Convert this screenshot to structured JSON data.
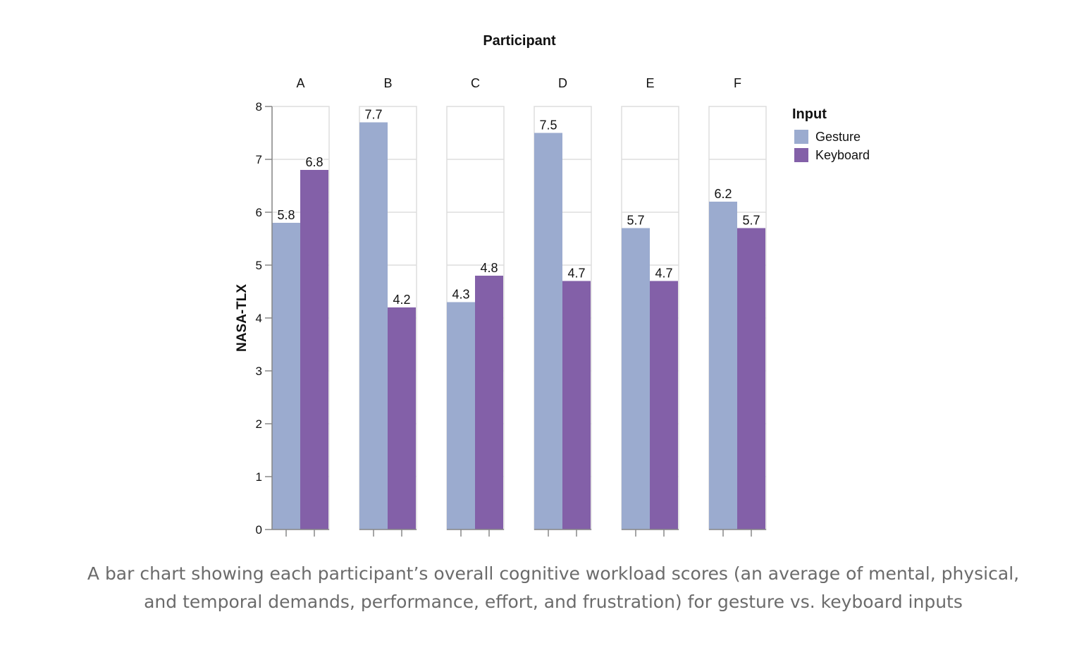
{
  "chart_data": {
    "type": "bar",
    "column_title": "Participant",
    "ylabel": "NASA-TLX",
    "ylim": [
      0,
      8
    ],
    "yticks": [
      0,
      1,
      2,
      3,
      4,
      5,
      6,
      7,
      8
    ],
    "grid": true,
    "legend_position": "right",
    "legend_title": "Input",
    "categories": [
      "A",
      "B",
      "C",
      "D",
      "E",
      "F"
    ],
    "series": [
      {
        "name": "Gesture",
        "color": "#9babcf",
        "values": [
          5.8,
          7.7,
          4.3,
          7.5,
          5.7,
          6.2
        ]
      },
      {
        "name": "Keyboard",
        "color": "#8360a8",
        "values": [
          6.8,
          4.2,
          4.8,
          4.7,
          4.7,
          5.7
        ]
      }
    ]
  },
  "caption": "A bar chart showing each participant’s overall cognitive workload scores (an average of mental, physical, and temporal demands, performance, effort, and frustration) for gesture vs. keyboard inputs"
}
